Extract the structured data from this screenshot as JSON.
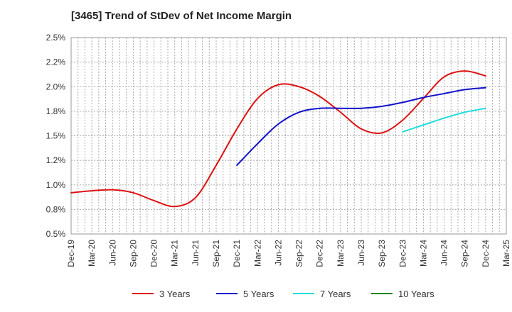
{
  "chart_data": {
    "type": "line",
    "title": "[3465]  Trend of StDev of Net Income Margin",
    "xlabel": "",
    "ylabel": "",
    "x": [
      "Dec-19",
      "Mar-20",
      "Jun-20",
      "Sep-20",
      "Dec-20",
      "Mar-21",
      "Jun-21",
      "Sep-21",
      "Dec-21",
      "Mar-22",
      "Jun-22",
      "Sep-22",
      "Dec-22",
      "Mar-23",
      "Jun-23",
      "Sep-23",
      "Dec-23",
      "Mar-24",
      "Jun-24",
      "Sep-24",
      "Dec-24",
      "Mar-25"
    ],
    "ylim": [
      0.5,
      2.5
    ],
    "yticks": [
      {
        "value": 0.5,
        "label": "0.5%"
      },
      {
        "value": 0.75,
        "label": "0.8%"
      },
      {
        "value": 1.0,
        "label": "1.0%"
      },
      {
        "value": 1.25,
        "label": "1.2%"
      },
      {
        "value": 1.5,
        "label": "1.5%"
      },
      {
        "value": 1.75,
        "label": "1.8%"
      },
      {
        "value": 2.0,
        "label": "2.0%"
      },
      {
        "value": 2.25,
        "label": "2.2%"
      },
      {
        "value": 2.5,
        "label": "2.5%"
      }
    ],
    "grid": true,
    "legend_position": "bottom",
    "series": [
      {
        "name": "3 Years",
        "color": "#dd1111",
        "values": [
          0.92,
          0.94,
          0.95,
          0.92,
          0.84,
          0.78,
          0.87,
          1.2,
          1.57,
          1.88,
          2.02,
          2.0,
          1.9,
          1.74,
          1.57,
          1.53,
          1.66,
          1.88,
          2.1,
          2.16,
          2.11,
          null
        ]
      },
      {
        "name": "5 Years",
        "color": "#1111cc",
        "values": [
          null,
          null,
          null,
          null,
          null,
          null,
          null,
          null,
          1.2,
          1.42,
          1.62,
          1.74,
          1.78,
          1.78,
          1.78,
          1.8,
          1.84,
          1.89,
          1.93,
          1.97,
          1.99,
          null
        ]
      },
      {
        "name": "7 Years",
        "color": "#22dddd",
        "values": [
          null,
          null,
          null,
          null,
          null,
          null,
          null,
          null,
          null,
          null,
          null,
          null,
          null,
          null,
          null,
          null,
          1.54,
          1.61,
          1.68,
          1.74,
          1.78,
          null
        ]
      },
      {
        "name": "10 Years",
        "color": "#228822",
        "values": [
          null,
          null,
          null,
          null,
          null,
          null,
          null,
          null,
          null,
          null,
          null,
          null,
          null,
          null,
          null,
          null,
          null,
          null,
          null,
          null,
          null,
          null
        ]
      }
    ]
  }
}
